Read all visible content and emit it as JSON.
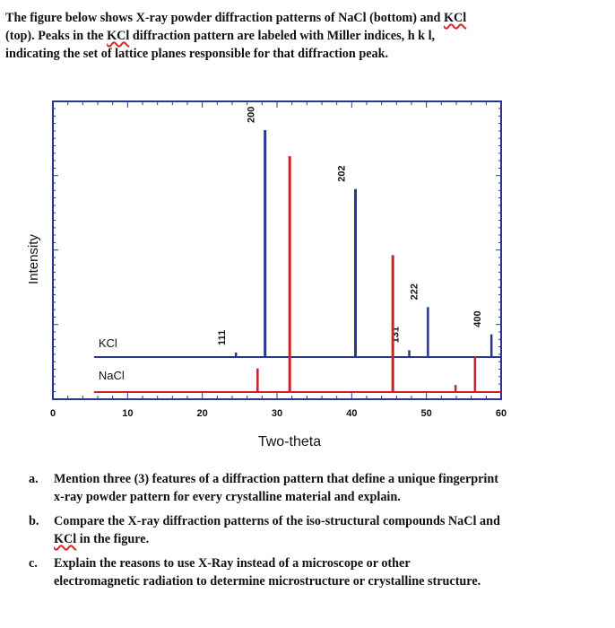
{
  "intro": {
    "line1_pre": "The figure below shows X-ray powder diffraction patterns of NaCl (bottom) and ",
    "line1_kcl": "KCl",
    "line2_pre": "(top). Peaks in the ",
    "line2_kcl": "KCl",
    "line2_post": " diffraction pattern are labeled with Miller indices, h k l,",
    "line3": "indicating the set of lattice planes responsible for that diffraction peak."
  },
  "colors": {
    "kcl": "#2a3590",
    "nacl": "#c8232c",
    "frame": "#2a3590"
  },
  "chart_data": {
    "type": "line",
    "xlabel": "Two-theta",
    "ylabel": "Intensity",
    "xlim": [
      0,
      60
    ],
    "xticks": [
      "0",
      "10",
      "20",
      "30",
      "40",
      "50",
      "60"
    ],
    "series": [
      {
        "name": "KCl",
        "peaks": [
          {
            "x": 24.5,
            "h": 0.02,
            "label": "111"
          },
          {
            "x": 28.4,
            "h": 1.0,
            "label": "200"
          },
          {
            "x": 40.5,
            "h": 0.74,
            "label": "202"
          },
          {
            "x": 47.7,
            "h": 0.03,
            "label": "131"
          },
          {
            "x": 50.2,
            "h": 0.22,
            "label": "222"
          },
          {
            "x": 58.7,
            "h": 0.1,
            "label": "400"
          }
        ]
      },
      {
        "name": "NaCl",
        "peaks": [
          {
            "x": 27.4,
            "h": 0.1,
            "label": ""
          },
          {
            "x": 31.7,
            "h": 1.0,
            "label": ""
          },
          {
            "x": 45.5,
            "h": 0.58,
            "label": ""
          },
          {
            "x": 53.9,
            "h": 0.03,
            "label": ""
          },
          {
            "x": 56.5,
            "h": 0.15,
            "label": ""
          }
        ]
      }
    ]
  },
  "questions": [
    {
      "marker": "a.",
      "lines": [
        "Mention three (3) features of a diffraction pattern that define a unique fingerprint",
        "x-ray powder pattern for every crystalline material and explain."
      ]
    },
    {
      "marker": "b.",
      "line1": "Compare the X-ray diffraction patterns of the iso-structural compounds NaCl and",
      "line2_kcl": "KCl",
      "line2_post": " in the figure."
    },
    {
      "marker": "c.",
      "lines": [
        "Explain the reasons to use X-Ray instead of a microscope or other",
        "electromagnetic radiation to determine microstructure or crystalline structure."
      ]
    }
  ]
}
